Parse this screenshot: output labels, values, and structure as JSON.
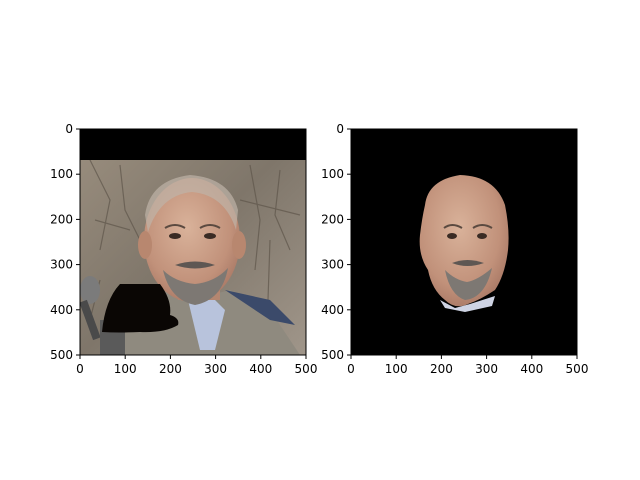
{
  "chart_data": [
    {
      "type": "image",
      "x_ticks": [
        0,
        100,
        200,
        300,
        400,
        500
      ],
      "y_ticks": [
        0,
        100,
        200,
        300,
        400,
        500
      ],
      "xlim": [
        0,
        500
      ],
      "ylim": [
        500,
        0
      ],
      "grid": false,
      "content": "photo of man, background intact, occluding black patch over lower-left"
    },
    {
      "type": "image",
      "x_ticks": [
        0,
        100,
        200,
        300,
        400,
        500
      ],
      "y_ticks": [
        0,
        100,
        200,
        300,
        400,
        500
      ],
      "xlim": [
        0,
        500
      ],
      "ylim": [
        500,
        0
      ],
      "grid": false,
      "content": "segmented face on black background"
    }
  ],
  "colors": {
    "background_black": "#000000",
    "axis": "#000000",
    "skin": "#c79a80",
    "beard": "#7d7873",
    "coat": "#8f8a7f",
    "tree_bg": "#8a7f70"
  }
}
